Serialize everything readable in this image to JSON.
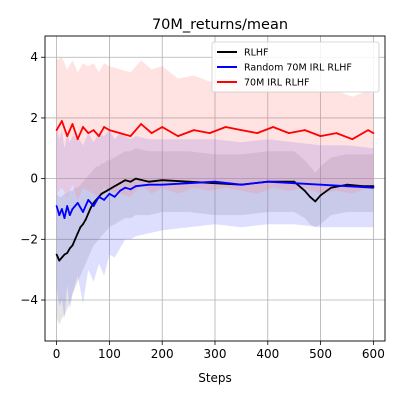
{
  "chart_data": {
    "type": "line",
    "title": "70M_returns/mean",
    "xlabel": "Steps",
    "ylabel": "",
    "xlim": [
      -22,
      622
    ],
    "ylim": [
      -5.35,
      4.7
    ],
    "xticks": [
      0,
      100,
      200,
      300,
      400,
      500,
      600
    ],
    "yticks": [
      -4,
      -2,
      0,
      2,
      4
    ],
    "grid": true,
    "legend_position": "top-right",
    "series": [
      {
        "name": "RLHF",
        "color": "#000000",
        "band_color": "#888888",
        "x": [
          0,
          5,
          10,
          15,
          20,
          25,
          30,
          35,
          40,
          45,
          50,
          55,
          60,
          65,
          70,
          75,
          80,
          85,
          90,
          95,
          100,
          110,
          120,
          130,
          140,
          150,
          175,
          200,
          250,
          300,
          350,
          400,
          450,
          470,
          480,
          490,
          500,
          520,
          550,
          580,
          600
        ],
        "y": [
          -2.5,
          -2.7,
          -2.6,
          -2.5,
          -2.45,
          -2.3,
          -2.2,
          -2.0,
          -1.8,
          -1.6,
          -1.5,
          -1.35,
          -1.15,
          -0.95,
          -0.8,
          -0.7,
          -0.6,
          -0.5,
          -0.45,
          -0.4,
          -0.35,
          -0.25,
          -0.15,
          -0.05,
          -0.1,
          0.0,
          -0.1,
          -0.05,
          -0.1,
          -0.15,
          -0.2,
          -0.1,
          -0.1,
          -0.4,
          -0.6,
          -0.75,
          -0.55,
          -0.3,
          -0.2,
          -0.25,
          -0.25
        ],
        "y_lower": [
          -4.6,
          -4.8,
          -4.6,
          -4.5,
          -4.3,
          -4.1,
          -3.8,
          -3.6,
          -3.4,
          -3.2,
          -3.0,
          -2.8,
          -2.6,
          -2.4,
          -2.2,
          -2.1,
          -2.0,
          -1.9,
          -1.8,
          -1.7,
          -1.6,
          -1.5,
          -1.4,
          -1.3,
          -1.3,
          -1.2,
          -1.2,
          -1.1,
          -1.1,
          -1.2,
          -1.2,
          -1.1,
          -1.1,
          -1.3,
          -1.5,
          -1.6,
          -1.5,
          -1.2,
          -1.1,
          -1.1,
          -1.1
        ],
        "y_upper": [
          -0.5,
          -0.6,
          -0.6,
          -0.5,
          -0.5,
          -0.4,
          -0.4,
          -0.3,
          -0.3,
          -0.2,
          -0.1,
          0.0,
          0.1,
          0.2,
          0.3,
          0.4,
          0.4,
          0.5,
          0.5,
          0.6,
          0.6,
          0.7,
          0.8,
          0.9,
          0.9,
          1.0,
          0.9,
          0.9,
          0.9,
          0.8,
          0.8,
          0.9,
          0.9,
          0.6,
          0.4,
          0.2,
          0.4,
          0.7,
          0.8,
          0.8,
          0.8
        ]
      },
      {
        "name": "Random 70M IRL RLHF",
        "color": "#0000ff",
        "band_color": "#6a6aff",
        "x": [
          0,
          5,
          10,
          15,
          20,
          25,
          30,
          40,
          50,
          60,
          70,
          80,
          90,
          100,
          110,
          120,
          130,
          140,
          150,
          175,
          200,
          250,
          300,
          350,
          400,
          450,
          500,
          550,
          600
        ],
        "y": [
          -0.9,
          -1.2,
          -1.0,
          -1.3,
          -0.9,
          -1.2,
          -1.0,
          -0.8,
          -1.1,
          -0.7,
          -0.9,
          -0.6,
          -0.7,
          -0.5,
          -0.6,
          -0.4,
          -0.3,
          -0.35,
          -0.25,
          -0.2,
          -0.2,
          -0.15,
          -0.1,
          -0.2,
          -0.1,
          -0.15,
          -0.2,
          -0.25,
          -0.3
        ],
        "y_lower": [
          -3.6,
          -4.2,
          -4.0,
          -4.6,
          -3.5,
          -4.3,
          -3.8,
          -3.2,
          -4.1,
          -3.0,
          -3.4,
          -2.8,
          -3.2,
          -2.5,
          -2.6,
          -2.3,
          -2.0,
          -2.0,
          -1.9,
          -1.8,
          -1.7,
          -1.6,
          -1.5,
          -1.6,
          -1.5,
          -1.5,
          -1.6,
          -1.6,
          -1.6
        ],
        "y_upper": [
          1.8,
          1.3,
          1.6,
          1.0,
          1.5,
          1.2,
          1.4,
          1.4,
          1.1,
          1.5,
          1.2,
          1.5,
          1.4,
          1.6,
          1.3,
          1.5,
          1.4,
          1.3,
          1.4,
          1.3,
          1.3,
          1.3,
          1.3,
          1.2,
          1.3,
          1.2,
          1.1,
          1.1,
          1.0
        ]
      },
      {
        "name": "70M IRL RLHF",
        "color": "#ff0000",
        "band_color": "#ff8080",
        "x": [
          0,
          10,
          20,
          30,
          40,
          50,
          60,
          70,
          80,
          90,
          100,
          120,
          140,
          160,
          180,
          200,
          230,
          260,
          290,
          320,
          350,
          380,
          410,
          440,
          470,
          500,
          530,
          560,
          590,
          600
        ],
        "y": [
          1.6,
          1.9,
          1.4,
          1.8,
          1.3,
          1.7,
          1.5,
          1.6,
          1.4,
          1.7,
          1.6,
          1.5,
          1.4,
          1.8,
          1.5,
          1.7,
          1.4,
          1.6,
          1.5,
          1.7,
          1.6,
          1.5,
          1.7,
          1.5,
          1.6,
          1.4,
          1.5,
          1.3,
          1.6,
          1.5
        ],
        "y_lower": [
          -0.5,
          -0.3,
          -0.6,
          -0.2,
          -0.7,
          -0.3,
          -0.4,
          -0.5,
          -0.6,
          -0.3,
          -0.4,
          -0.5,
          -0.6,
          -0.2,
          -0.5,
          -0.3,
          -0.5,
          -0.3,
          -0.4,
          -0.3,
          -0.4,
          -0.5,
          -0.3,
          -0.4,
          -0.3,
          -0.5,
          -0.4,
          -0.5,
          -0.3,
          -0.4
        ],
        "y_upper": [
          3.9,
          4.0,
          3.6,
          3.9,
          3.5,
          3.8,
          3.7,
          3.8,
          3.5,
          3.8,
          3.7,
          3.6,
          3.5,
          3.9,
          3.6,
          3.7,
          3.3,
          3.4,
          3.2,
          3.3,
          3.2,
          3.0,
          3.2,
          3.0,
          3.1,
          2.9,
          2.9,
          2.7,
          2.9,
          2.8
        ]
      }
    ]
  }
}
